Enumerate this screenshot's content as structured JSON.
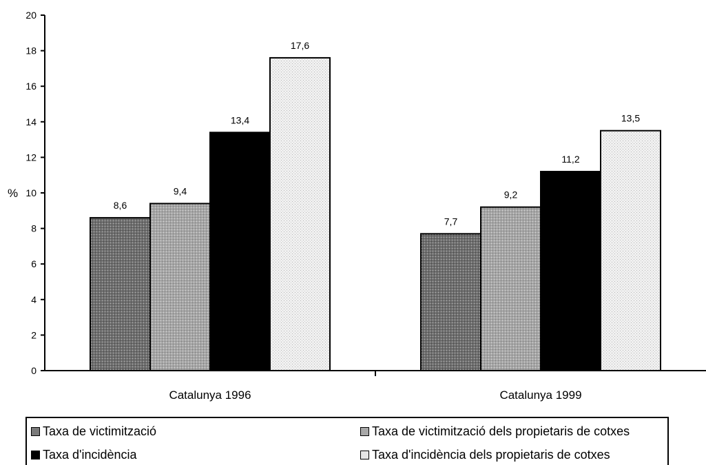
{
  "chart_data": {
    "type": "bar",
    "categories": [
      "Catalunya 1996",
      "Catalunya 1999"
    ],
    "series": [
      {
        "name": "Taxa de victimització",
        "values": [
          8.6,
          7.7
        ],
        "color": "#7a7a7a",
        "labels": [
          "8,6",
          "7,7"
        ]
      },
      {
        "name": "Taxa de victimització dels propietaris de cotxes",
        "values": [
          9.4,
          9.2
        ],
        "color": "#a8a8a8",
        "labels": [
          "9,4",
          "9,2"
        ]
      },
      {
        "name": "Taxa d'incidència",
        "values": [
          13.4,
          11.2
        ],
        "color": "#000000",
        "labels": [
          "13,4",
          "11,2"
        ]
      },
      {
        "name": "Taxa d'incidència dels propietaris de cotxes",
        "values": [
          17.6,
          13.5
        ],
        "color": "#e6e6e6",
        "labels": [
          "17,6",
          "13,5"
        ]
      }
    ],
    "ylabel": "%",
    "xlabel": "",
    "ylim": [
      0,
      20
    ],
    "yticks": [
      0,
      2,
      4,
      6,
      8,
      10,
      12,
      14,
      16,
      18,
      20
    ],
    "grid": false,
    "legend_position": "bottom"
  }
}
